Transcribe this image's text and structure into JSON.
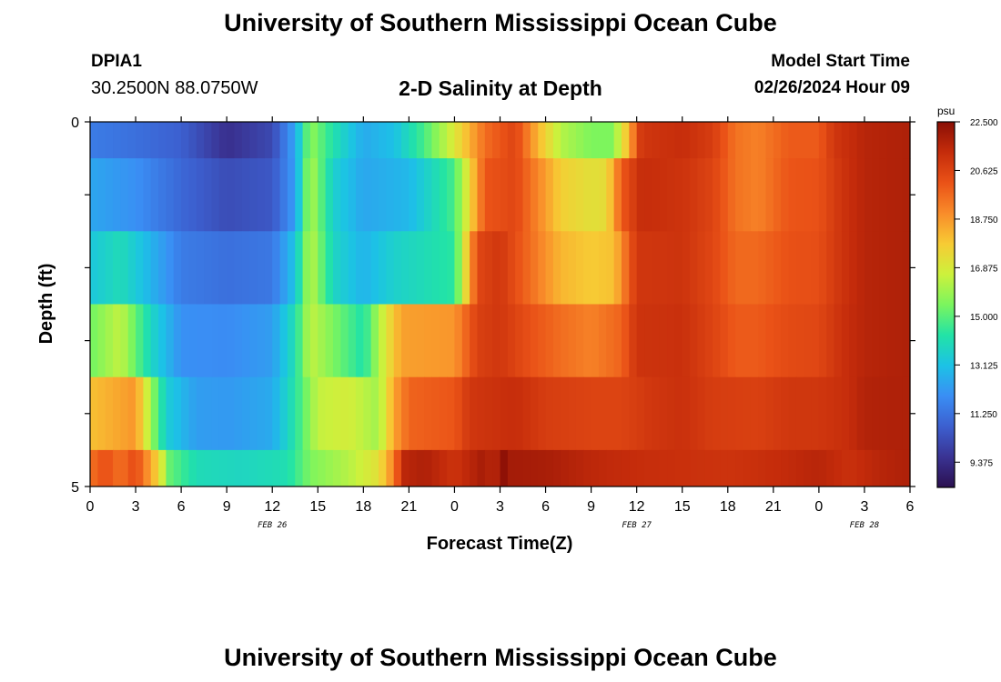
{
  "header": {
    "title": "University of Southern Mississippi Ocean Cube",
    "station_id": "DPIA1",
    "coords": "30.2500N  88.0750W",
    "plot_title": "2-D Salinity at Depth",
    "model_label": "Model Start Time",
    "model_time": "02/26/2024 Hour 09"
  },
  "footer": {
    "title": "University of Southern Mississippi Ocean Cube"
  },
  "colors": {
    "scale": [
      "#2b1050",
      "#3a3393",
      "#3c5fcf",
      "#3a8ef4",
      "#1cc2e6",
      "#22e3a6",
      "#7bf55e",
      "#cdf13c",
      "#f7cb34",
      "#f98c2a",
      "#ea5217",
      "#c52c0b",
      "#8a0f05"
    ]
  },
  "chart_data": {
    "type": "heatmap",
    "title": "2-D Salinity at Depth",
    "xlabel": "Forecast Time(Z)",
    "ylabel": "Depth (ft)",
    "xlim": [
      0,
      54
    ],
    "ylim": [
      0,
      5
    ],
    "x_tick_values": [
      0,
      3,
      6,
      9,
      12,
      15,
      18,
      21,
      24,
      27,
      30,
      33,
      36,
      39,
      42,
      45,
      48,
      51,
      54
    ],
    "x_tick_labels": [
      "0",
      "3",
      "6",
      "9",
      "12",
      "15",
      "18",
      "21",
      "0",
      "3",
      "6",
      "9",
      "12",
      "15",
      "18",
      "21",
      "0",
      "3",
      "6"
    ],
    "y_tick_values": [
      0,
      1,
      2,
      3,
      4,
      5
    ],
    "y_tick_labels": [
      "0",
      "",
      "",
      "",
      "",
      "5"
    ],
    "date_labels": [
      {
        "x": 12,
        "text": "FEB 26"
      },
      {
        "x": 36,
        "text": "FEB 27"
      },
      {
        "x": 51,
        "text": "FEB 28"
      }
    ],
    "colorbar": {
      "unit": "psu",
      "vmin": 8.4375,
      "vmax": 22.5,
      "tick_values": [
        22.5,
        20.625,
        18.75,
        16.875,
        15.0,
        13.125,
        11.25,
        9.375
      ],
      "tick_labels": [
        "22.500",
        "20.625",
        "18.750",
        "16.875",
        "15.000",
        "13.125",
        "11.250",
        "9.375"
      ]
    },
    "depth_rows": [
      {
        "depth": "0.0-0.5",
        "knots": [
          [
            0,
            11.5
          ],
          [
            3,
            11.2
          ],
          [
            6,
            10.8
          ],
          [
            9,
            9.5
          ],
          [
            12,
            10.2
          ],
          [
            13.5,
            12.5
          ],
          [
            14.5,
            15.8
          ],
          [
            16,
            14.2
          ],
          [
            18,
            12.6
          ],
          [
            20,
            13.1
          ],
          [
            22,
            14.8
          ],
          [
            24,
            17
          ],
          [
            26,
            19.6
          ],
          [
            28,
            20.6
          ],
          [
            29.5,
            18.2
          ],
          [
            31,
            16.3
          ],
          [
            33,
            15.5
          ],
          [
            34.4,
            15.5
          ],
          [
            35.3,
            17.8
          ],
          [
            36.3,
            21
          ],
          [
            39,
            21.3
          ],
          [
            41,
            20.8
          ],
          [
            42.5,
            19.5
          ],
          [
            44,
            19.2
          ],
          [
            46,
            20
          ],
          [
            48,
            20
          ],
          [
            49,
            21
          ],
          [
            51,
            21.6
          ],
          [
            54,
            21.8
          ]
        ]
      },
      {
        "depth": "0.5-1.5",
        "knots": [
          [
            0,
            12.5
          ],
          [
            3,
            12
          ],
          [
            6,
            11
          ],
          [
            9,
            10.3
          ],
          [
            12,
            10.6
          ],
          [
            13.5,
            12.3
          ],
          [
            14.5,
            16.3
          ],
          [
            16,
            13.6
          ],
          [
            18,
            12.5
          ],
          [
            21,
            12.9
          ],
          [
            24,
            14.8
          ],
          [
            26,
            20.1
          ],
          [
            28,
            20.5
          ],
          [
            29.5,
            19.1
          ],
          [
            31,
            17.7
          ],
          [
            33,
            17.2
          ],
          [
            34,
            17.3
          ],
          [
            35,
            20
          ],
          [
            36.3,
            21.3
          ],
          [
            39,
            21.1
          ],
          [
            41,
            20.6
          ],
          [
            42.5,
            19.5
          ],
          [
            44,
            19.2
          ],
          [
            46,
            20.1
          ],
          [
            48,
            20.2
          ],
          [
            49.5,
            21.1
          ],
          [
            51,
            21.6
          ],
          [
            54,
            21.8
          ]
        ]
      },
      {
        "depth": "1.5-2.5",
        "knots": [
          [
            0,
            13.3
          ],
          [
            2,
            14
          ],
          [
            4,
            12.8
          ],
          [
            6,
            11.5
          ],
          [
            9,
            11.2
          ],
          [
            12,
            11.4
          ],
          [
            13.5,
            13.2
          ],
          [
            14.5,
            16.5
          ],
          [
            16,
            13.8
          ],
          [
            18,
            12.8
          ],
          [
            20,
            13.6
          ],
          [
            24,
            14.4
          ],
          [
            25.5,
            20.5
          ],
          [
            27,
            21
          ],
          [
            29,
            19.6
          ],
          [
            31,
            18.2
          ],
          [
            33,
            17.8
          ],
          [
            34.5,
            18
          ],
          [
            36,
            21
          ],
          [
            39,
            21.1
          ],
          [
            41,
            20.5
          ],
          [
            42.5,
            19.7
          ],
          [
            44,
            19.7
          ],
          [
            46,
            20.2
          ],
          [
            48,
            20.3
          ],
          [
            49.5,
            21.1
          ],
          [
            51,
            21.6
          ],
          [
            54,
            21.8
          ]
        ]
      },
      {
        "depth": "2.5-3.5",
        "knots": [
          [
            0,
            15.3
          ],
          [
            2,
            16.5
          ],
          [
            4,
            13.8
          ],
          [
            6,
            12
          ],
          [
            9,
            11.9
          ],
          [
            12,
            12.3
          ],
          [
            13.5,
            14.1
          ],
          [
            14.5,
            16.5
          ],
          [
            16,
            15.5
          ],
          [
            18,
            14.2
          ],
          [
            19.5,
            17.1
          ],
          [
            20.5,
            18.6
          ],
          [
            24,
            18.8
          ],
          [
            25.5,
            20.7
          ],
          [
            27,
            21
          ],
          [
            29,
            20.2
          ],
          [
            31,
            19.6
          ],
          [
            33,
            19.2
          ],
          [
            35,
            19.8
          ],
          [
            36,
            21.1
          ],
          [
            39,
            21.2
          ],
          [
            41,
            20.6
          ],
          [
            42.5,
            20
          ],
          [
            44,
            20
          ],
          [
            46,
            20.4
          ],
          [
            48,
            20.5
          ],
          [
            49.5,
            21.2
          ],
          [
            51,
            21.6
          ],
          [
            54,
            21.8
          ]
        ]
      },
      {
        "depth": "3.5-4.5",
        "knots": [
          [
            0,
            18
          ],
          [
            3,
            18.8
          ],
          [
            4,
            16
          ],
          [
            5,
            13.5
          ],
          [
            7,
            12.3
          ],
          [
            9,
            12.2
          ],
          [
            12,
            12.6
          ],
          [
            13.5,
            14.3
          ],
          [
            15,
            16.5
          ],
          [
            17,
            16.8
          ],
          [
            19,
            16
          ],
          [
            20,
            18.5
          ],
          [
            21,
            19.8
          ],
          [
            24,
            20.1
          ],
          [
            25,
            21
          ],
          [
            28,
            21.3
          ],
          [
            30,
            20.8
          ],
          [
            33,
            20.6
          ],
          [
            35,
            20.6
          ],
          [
            37,
            21
          ],
          [
            39,
            21.2
          ],
          [
            41,
            20.8
          ],
          [
            44,
            20.7
          ],
          [
            46,
            21
          ],
          [
            48,
            21
          ],
          [
            50,
            21.3
          ],
          [
            51,
            21.7
          ],
          [
            54,
            21.8
          ]
        ]
      },
      {
        "depth": "4.5-5.0",
        "knots": [
          [
            0,
            19.5
          ],
          [
            1,
            20.3
          ],
          [
            2,
            19.5
          ],
          [
            3,
            20.4
          ],
          [
            4,
            18.5
          ],
          [
            4.6,
            17.3
          ],
          [
            5.2,
            15.2
          ],
          [
            7,
            14
          ],
          [
            10,
            13.8
          ],
          [
            13,
            14.1
          ],
          [
            14.5,
            15.5
          ],
          [
            17,
            16.3
          ],
          [
            19,
            17.2
          ],
          [
            20,
            19.2
          ],
          [
            20.6,
            21.5
          ],
          [
            22,
            21.8
          ],
          [
            24,
            21.1
          ],
          [
            25.8,
            21.9
          ],
          [
            26.7,
            21.5
          ],
          [
            27,
            22.8
          ],
          [
            27.5,
            22
          ],
          [
            30,
            21.9
          ],
          [
            33,
            21.5
          ],
          [
            36,
            21.3
          ],
          [
            39,
            21.2
          ],
          [
            42,
            21.1
          ],
          [
            45,
            21.3
          ],
          [
            48,
            21.6
          ],
          [
            50,
            21.2
          ],
          [
            52,
            21.6
          ],
          [
            54,
            21.8
          ]
        ]
      }
    ]
  }
}
